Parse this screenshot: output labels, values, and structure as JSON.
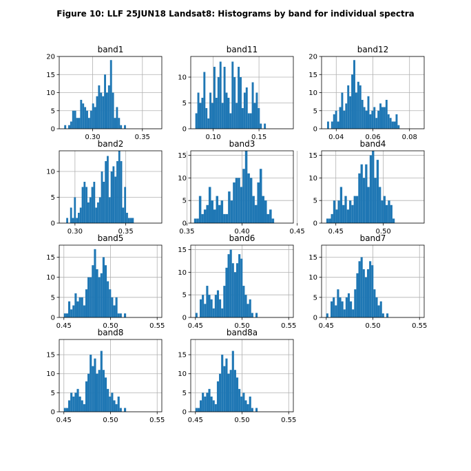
{
  "figure_title": "Figure 10: LLF 25JUN18  Landsat8: Histograms by band for individual spectra",
  "bar_color": "#1f77b4",
  "grid": true,
  "chart_data": [
    {
      "type": "bar",
      "title": "band1",
      "xlim": [
        0.2665,
        0.3695
      ],
      "ylim": [
        0,
        20
      ],
      "xticks": [
        {
          "v": 0.3,
          "l": "0.30"
        },
        {
          "v": 0.35,
          "l": "0.35"
        }
      ],
      "yticks": [
        {
          "v": 0,
          "l": "0"
        },
        {
          "v": 5,
          "l": "5"
        },
        {
          "v": 10,
          "l": "10"
        },
        {
          "v": 15,
          "l": "15"
        },
        {
          "v": 20,
          "l": "20"
        }
      ],
      "bin_start": 0.2715,
      "bin_width": 0.002,
      "counts": [
        1,
        0,
        1,
        2,
        5,
        5,
        3,
        3,
        8,
        7,
        6,
        5,
        3,
        5,
        7,
        6,
        9,
        12,
        10,
        9,
        15,
        10,
        12,
        19,
        10,
        3,
        6,
        3,
        1,
        0,
        1
      ]
    },
    {
      "type": "bar",
      "title": "band11",
      "xlim": [
        0.0755,
        0.1875
      ],
      "ylim": [
        0,
        14
      ],
      "xticks": [
        {
          "v": 0.1,
          "l": "0.10"
        },
        {
          "v": 0.15,
          "l": "0.15"
        }
      ],
      "yticks": [
        {
          "v": 0,
          "l": "0"
        },
        {
          "v": 5,
          "l": "5"
        },
        {
          "v": 10,
          "l": "10"
        }
      ],
      "bin_start": 0.0805,
      "bin_width": 0.0022,
      "counts": [
        3,
        7,
        5,
        6,
        11,
        4,
        2,
        7,
        5,
        12,
        6,
        10,
        13,
        5,
        12,
        7,
        6,
        3,
        13,
        10,
        5,
        12,
        10,
        4,
        7,
        8,
        3,
        3,
        9,
        5,
        7,
        4,
        1,
        0,
        1
      ]
    },
    {
      "type": "bar",
      "title": "band12",
      "xlim": [
        0.032,
        0.088
      ],
      "ylim": [
        0,
        20
      ],
      "xticks": [
        {
          "v": 0.04,
          "l": "0.04"
        },
        {
          "v": 0.06,
          "l": "0.06"
        },
        {
          "v": 0.08,
          "l": "0.08"
        }
      ],
      "yticks": [
        {
          "v": 0,
          "l": "0"
        },
        {
          "v": 5,
          "l": "5"
        },
        {
          "v": 10,
          "l": "10"
        },
        {
          "v": 15,
          "l": "15"
        },
        {
          "v": 20,
          "l": "20"
        }
      ],
      "bin_start": 0.035,
      "bin_width": 0.0011,
      "counts": [
        2,
        0,
        2,
        4,
        5,
        2,
        6,
        10,
        5,
        7,
        12,
        9,
        15,
        19,
        10,
        13,
        12,
        8,
        6,
        5,
        9,
        4,
        5,
        6,
        3,
        5,
        7,
        6,
        6,
        8,
        4,
        3,
        2,
        2,
        4,
        1
      ]
    },
    {
      "type": "bar",
      "title": "band2",
      "xlim": [
        0.2845,
        0.3855
      ],
      "ylim": [
        0,
        14
      ],
      "xticks": [
        {
          "v": 0.3,
          "l": "0.30"
        },
        {
          "v": 0.35,
          "l": "0.35"
        }
      ],
      "yticks": [
        {
          "v": 0,
          "l": "0"
        },
        {
          "v": 5,
          "l": "5"
        },
        {
          "v": 10,
          "l": "10"
        }
      ],
      "bin_start": 0.2895,
      "bin_width": 0.0019,
      "counts": [
        0,
        1,
        0,
        3,
        1,
        5,
        1,
        2,
        3,
        7,
        8,
        7,
        4,
        5,
        7,
        8,
        3,
        4,
        5,
        10,
        8,
        12,
        13,
        5,
        10,
        11,
        9,
        12,
        14,
        12,
        3,
        7,
        2,
        1,
        1,
        1
      ]
    },
    {
      "type": "bar",
      "title": "band3",
      "xlim": [
        0.3535,
        0.4465
      ],
      "ylim": [
        0,
        16
      ],
      "xticks": [
        {
          "v": 0.35,
          "l": "0.35"
        },
        {
          "v": 0.4,
          "l": "0.40"
        },
        {
          "v": 0.45,
          "l": "0.45"
        }
      ],
      "yticks": [
        {
          "v": 0,
          "l": "0"
        },
        {
          "v": 5,
          "l": "5"
        },
        {
          "v": 10,
          "l": "10"
        },
        {
          "v": 15,
          "l": "15"
        }
      ],
      "bin_start": 0.3565,
      "bin_width": 0.0022,
      "counts": [
        1,
        1,
        6,
        2,
        3,
        4,
        8,
        5,
        3,
        6,
        4,
        5,
        2,
        2,
        7,
        5,
        9,
        10,
        10,
        8,
        12,
        16,
        11,
        10,
        6,
        4,
        9,
        12,
        6,
        5,
        2,
        3,
        1
      ]
    },
    {
      "type": "bar",
      "title": "band4",
      "xlim": [
        0.435,
        0.543
      ],
      "ylim": [
        0,
        16
      ],
      "xticks": [
        {
          "v": 0.45,
          "l": "0.45"
        },
        {
          "v": 0.5,
          "l": "0.50"
        }
      ],
      "yticks": [
        {
          "v": 0,
          "l": "0"
        },
        {
          "v": 5,
          "l": "5"
        },
        {
          "v": 10,
          "l": "10"
        },
        {
          "v": 15,
          "l": "15"
        }
      ],
      "bin_start": 0.44,
      "bin_width": 0.0024,
      "counts": [
        1,
        1,
        2,
        5,
        3,
        5,
        8,
        4,
        6,
        3,
        5,
        4,
        6,
        6,
        11,
        13,
        10,
        13,
        8,
        15,
        16,
        10,
        14,
        8,
        5,
        6,
        4,
        5,
        4,
        1
      ]
    },
    {
      "type": "bar",
      "title": "band5",
      "xlim": [
        0.445,
        0.555
      ],
      "ylim": [
        0,
        18
      ],
      "xticks": [
        {
          "v": 0.45,
          "l": "0.45"
        },
        {
          "v": 0.5,
          "l": "0.50"
        },
        {
          "v": 0.55,
          "l": "0.55"
        }
      ],
      "yticks": [
        {
          "v": 0,
          "l": "0"
        },
        {
          "v": 5,
          "l": "5"
        },
        {
          "v": 10,
          "l": "10"
        },
        {
          "v": 15,
          "l": "15"
        }
      ],
      "bin_start": 0.45,
      "bin_width": 0.0023,
      "counts": [
        1,
        1,
        4,
        2,
        3,
        6,
        4,
        5,
        5,
        3,
        7,
        10,
        10,
        13,
        17,
        12,
        10,
        11,
        15,
        13,
        9,
        7,
        5,
        3,
        5,
        1,
        1,
        0,
        1
      ]
    },
    {
      "type": "bar",
      "title": "band6",
      "xlim": [
        0.445,
        0.555
      ],
      "ylim": [
        0,
        16
      ],
      "xticks": [
        {
          "v": 0.45,
          "l": "0.45"
        },
        {
          "v": 0.5,
          "l": "0.50"
        },
        {
          "v": 0.55,
          "l": "0.55"
        }
      ],
      "yticks": [
        {
          "v": 0,
          "l": "0"
        },
        {
          "v": 5,
          "l": "5"
        },
        {
          "v": 10,
          "l": "10"
        },
        {
          "v": 15,
          "l": "15"
        }
      ],
      "bin_start": 0.45,
      "bin_width": 0.0023,
      "counts": [
        1,
        0,
        4,
        5,
        3,
        7,
        5,
        4,
        2,
        5,
        6,
        4,
        2,
        7,
        11,
        14,
        15,
        12,
        10,
        12,
        14,
        13,
        7,
        5,
        3,
        4,
        1,
        0,
        1
      ]
    },
    {
      "type": "bar",
      "title": "band7",
      "xlim": [
        0.445,
        0.555
      ],
      "ylim": [
        0,
        18
      ],
      "xticks": [
        {
          "v": 0.45,
          "l": "0.45"
        },
        {
          "v": 0.5,
          "l": "0.50"
        },
        {
          "v": 0.55,
          "l": "0.55"
        }
      ],
      "yticks": [
        {
          "v": 0,
          "l": "0"
        },
        {
          "v": 5,
          "l": "5"
        },
        {
          "v": 10,
          "l": "10"
        },
        {
          "v": 15,
          "l": "15"
        }
      ],
      "bin_start": 0.45,
      "bin_width": 0.0023,
      "counts": [
        1,
        0,
        4,
        5,
        3,
        7,
        5,
        4,
        2,
        5,
        6,
        4,
        2,
        7,
        11,
        14,
        15,
        12,
        10,
        12,
        14,
        13,
        7,
        5,
        3,
        4,
        1,
        0,
        1
      ]
    },
    {
      "type": "bar",
      "title": "band8",
      "xlim": [
        0.445,
        0.555
      ],
      "ylim": [
        0,
        19
      ],
      "xticks": [
        {
          "v": 0.45,
          "l": "0.45"
        },
        {
          "v": 0.5,
          "l": "0.50"
        },
        {
          "v": 0.55,
          "l": "0.55"
        }
      ],
      "yticks": [
        {
          "v": 0,
          "l": "0"
        },
        {
          "v": 5,
          "l": "5"
        },
        {
          "v": 10,
          "l": "10"
        },
        {
          "v": 15,
          "l": "15"
        }
      ],
      "bin_start": 0.45,
      "bin_width": 0.0023,
      "counts": [
        1,
        1,
        3,
        5,
        4,
        5,
        6,
        4,
        3,
        2,
        8,
        10,
        15,
        12,
        14,
        10,
        11,
        16,
        11,
        9,
        6,
        4,
        5,
        3,
        2,
        4,
        1,
        0,
        1
      ]
    },
    {
      "type": "bar",
      "title": "band8a",
      "xlim": [
        0.445,
        0.555
      ],
      "ylim": [
        0,
        19
      ],
      "xticks": [
        {
          "v": 0.45,
          "l": "0.45"
        },
        {
          "v": 0.5,
          "l": "0.50"
        },
        {
          "v": 0.55,
          "l": "0.55"
        }
      ],
      "yticks": [
        {
          "v": 0,
          "l": "0"
        },
        {
          "v": 5,
          "l": "5"
        },
        {
          "v": 10,
          "l": "10"
        },
        {
          "v": 15,
          "l": "15"
        }
      ],
      "bin_start": 0.45,
      "bin_width": 0.0023,
      "counts": [
        1,
        1,
        3,
        5,
        4,
        5,
        6,
        4,
        3,
        2,
        8,
        10,
        15,
        12,
        14,
        10,
        11,
        16,
        11,
        9,
        6,
        4,
        5,
        3,
        2,
        4,
        1,
        0,
        1
      ]
    }
  ]
}
